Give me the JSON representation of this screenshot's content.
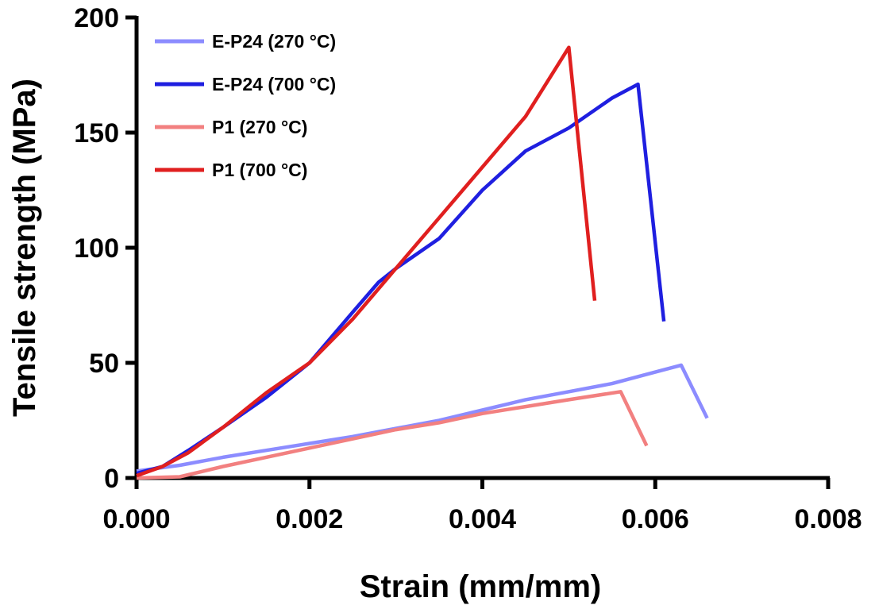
{
  "chart_data": {
    "type": "line",
    "title": "",
    "xlabel": "Strain (mm/mm)",
    "ylabel": "Tensile strength (MPa)",
    "xlim": [
      0,
      0.008
    ],
    "ylim": [
      0,
      200
    ],
    "xticks": [
      0,
      0.002,
      0.004,
      0.006,
      0.008
    ],
    "xtick_labels": [
      "0.000",
      "0.002",
      "0.004",
      "0.006",
      "0.008"
    ],
    "yticks": [
      0,
      50,
      100,
      150,
      200
    ],
    "ytick_labels": [
      "0",
      "50",
      "100",
      "150",
      "200"
    ],
    "grid": false,
    "legend_position": "top-left",
    "series": [
      {
        "name": "E-P24 (270 °C)",
        "color": "#8c8cff",
        "x": [
          0,
          0.0005,
          0.001,
          0.0015,
          0.002,
          0.0025,
          0.003,
          0.0035,
          0.004,
          0.0045,
          0.005,
          0.0055,
          0.006,
          0.0063,
          0.0066
        ],
        "y": [
          3,
          5.5,
          9,
          12,
          15,
          18,
          21.5,
          25,
          29.5,
          34,
          37.5,
          41,
          46,
          49,
          26
        ]
      },
      {
        "name": "E-P24 (700 °C)",
        "color": "#1f1fe0",
        "x": [
          0,
          0.0003,
          0.0006,
          0.001,
          0.0015,
          0.002,
          0.0025,
          0.0028,
          0.003,
          0.0035,
          0.004,
          0.0045,
          0.005,
          0.0055,
          0.0058,
          0.0061
        ],
        "y": [
          2,
          5,
          12,
          22,
          35,
          50,
          72,
          85,
          91,
          104,
          125,
          142,
          152,
          165,
          171,
          68
        ]
      },
      {
        "name": "P1 (270 °C)",
        "color": "#f28080",
        "x": [
          0,
          0.0005,
          0.001,
          0.0015,
          0.002,
          0.0025,
          0.003,
          0.0035,
          0.004,
          0.0045,
          0.005,
          0.0056,
          0.0059
        ],
        "y": [
          0,
          0.5,
          5,
          9,
          13,
          17,
          21,
          24,
          28,
          31,
          34,
          37.5,
          14
        ]
      },
      {
        "name": "P1 (700 °C)",
        "color": "#e01f1f",
        "x": [
          0,
          0.0003,
          0.0006,
          0.001,
          0.0015,
          0.002,
          0.0025,
          0.003,
          0.0035,
          0.004,
          0.0045,
          0.005,
          0.0053
        ],
        "y": [
          1,
          5,
          11,
          22,
          37,
          50,
          69,
          91,
          113,
          135,
          157,
          187,
          77
        ]
      }
    ]
  }
}
